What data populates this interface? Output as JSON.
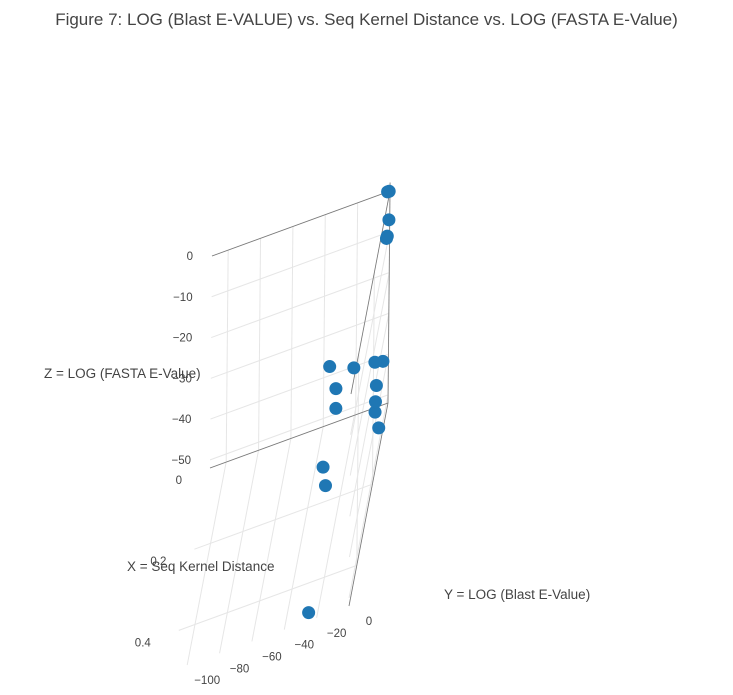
{
  "chart_data": {
    "type": "scatter3d",
    "title": "Figure 7: LOG (Blast E-VALUE) vs. Seq Kernel Distance vs. LOG (FASTA E-Value)",
    "x_axis": {
      "label": "X = Seq Kernel Distance",
      "range": [
        0,
        0.5
      ],
      "ticks": [
        0,
        0.2,
        0.4
      ],
      "tick_labels": [
        "0",
        "0.2",
        "0.4"
      ]
    },
    "y_axis": {
      "label": "Y = LOG (Blast E-Value)",
      "range": [
        -110,
        0
      ],
      "ticks": [
        0,
        -20,
        -40,
        -60,
        -80,
        -100
      ],
      "tick_labels": [
        "0",
        "−20",
        "−40",
        "−60",
        "−80",
        "−100"
      ]
    },
    "z_axis": {
      "label": "Z = LOG (FASTA E-Value)",
      "range": [
        -52,
        0
      ],
      "ticks": [
        0,
        -10,
        -20,
        -30,
        -40,
        -50
      ],
      "tick_labels": [
        "0",
        "−10",
        "−20",
        "−30",
        "−40",
        "−50"
      ]
    },
    "marker_color": "#1f77b4",
    "grid": true,
    "points": [
      {
        "x": 0.0,
        "y": -0.5,
        "z": 0
      },
      {
        "x": 0.0,
        "y": -1.5,
        "z": 0
      },
      {
        "x": 0.0,
        "y": -0.5,
        "z": -7
      },
      {
        "x": 0.02,
        "y": -0.5,
        "z": -9
      },
      {
        "x": 0.02,
        "y": -1.0,
        "z": -9.5
      },
      {
        "x": 0.03,
        "y": -2,
        "z": -38.5
      },
      {
        "x": 0.03,
        "y": -7,
        "z": -38
      },
      {
        "x": 0.03,
        "y": -20,
        "z": -37.5
      },
      {
        "x": 0.03,
        "y": -35,
        "z": -35
      },
      {
        "x": 0.03,
        "y": -31,
        "z": -41
      },
      {
        "x": 0.13,
        "y": -2,
        "z": -41
      },
      {
        "x": 0.05,
        "y": -5,
        "z": -42
      },
      {
        "x": 0.06,
        "y": -5,
        "z": -45
      },
      {
        "x": 0.1,
        "y": -1,
        "z": -48
      },
      {
        "x": 0.05,
        "y": -30,
        "z": -44
      },
      {
        "x": 0.15,
        "y": -33,
        "z": -48
      },
      {
        "x": 0.18,
        "y": -30,
        "z": -50
      },
      {
        "x": 0.5,
        "y": -25,
        "z": -50
      }
    ]
  }
}
